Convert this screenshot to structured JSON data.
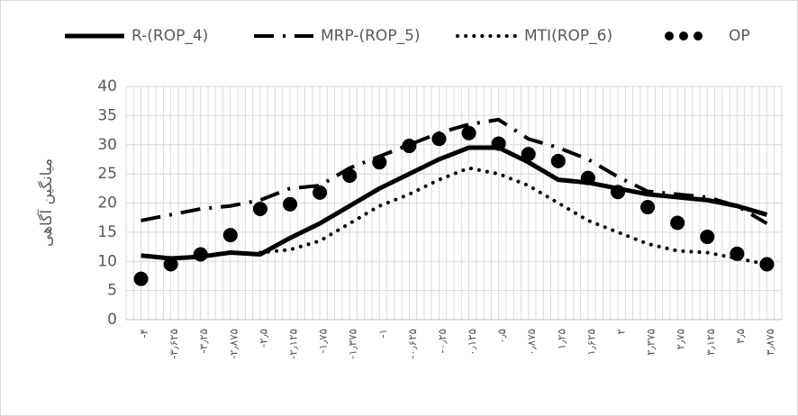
{
  "chart_data": {
    "type": "line",
    "y_label": "میانگین آگاهی",
    "categories": [
      "-۴",
      "-۳٫۶۲۵",
      "-۳٫۲۵",
      "-۲٫۸۷۵",
      "-۲٫۵",
      "-۲٫۱۲۵",
      "-۱٫۷۵",
      "-۱٫۳۷۵",
      "-۱",
      "-۰٫۶۲۵",
      "-۰٫۲۵",
      "۰٫۱۲۵",
      "۰٫۵",
      "۰٫۸۷۵",
      "۱٫۲۵",
      "۱٫۶۲۵",
      "۲",
      "۲٫۳۷۵",
      "۲٫۷۵",
      "۳٫۱۲۵",
      "۳٫۵",
      "۳٫۸۷۵"
    ],
    "series": [
      {
        "name": "R-(ROP_4)",
        "color": "#000000",
        "style": "solid",
        "values": [
          11,
          10.5,
          10.8,
          11.5,
          11.2,
          14,
          16.5,
          19.5,
          22.5,
          25,
          27.5,
          29.5,
          29.5,
          27,
          24,
          23.5,
          22.5,
          21.5,
          21,
          20.5,
          19.5,
          18
        ]
      },
      {
        "name": "MRP-(ROP_5)",
        "color": "#000000",
        "style": "dashdot",
        "values": [
          17,
          18,
          19,
          19.5,
          20.5,
          22.5,
          23,
          26,
          28,
          30,
          32,
          33.5,
          34.3,
          31,
          29.5,
          27.5,
          24.5,
          22,
          21.5,
          21,
          19.5,
          16.5
        ]
      },
      {
        "name": "MTI(ROP_6)",
        "color": "#000000",
        "style": "dot",
        "values": [
          null,
          null,
          null,
          null,
          11.5,
          12,
          13.5,
          16.5,
          19.5,
          21.5,
          24,
          26,
          25,
          23,
          20,
          17,
          15,
          13,
          11.8,
          11.5,
          10.5,
          9.5
        ]
      },
      {
        "name": "OP",
        "color": "#000000",
        "style": "markers",
        "values": [
          7,
          9.5,
          11.2,
          14.5,
          19,
          19.8,
          21.8,
          24.7,
          27,
          29.8,
          31,
          32,
          30.2,
          28.4,
          27.2,
          24.3,
          21.9,
          19.3,
          16.6,
          14.2,
          11.3,
          9.5
        ]
      }
    ],
    "ylim": [
      0,
      40
    ],
    "yticks": [
      0,
      5,
      10,
      15,
      20,
      25,
      30,
      35,
      40
    ],
    "grid": true,
    "legend": "top"
  }
}
